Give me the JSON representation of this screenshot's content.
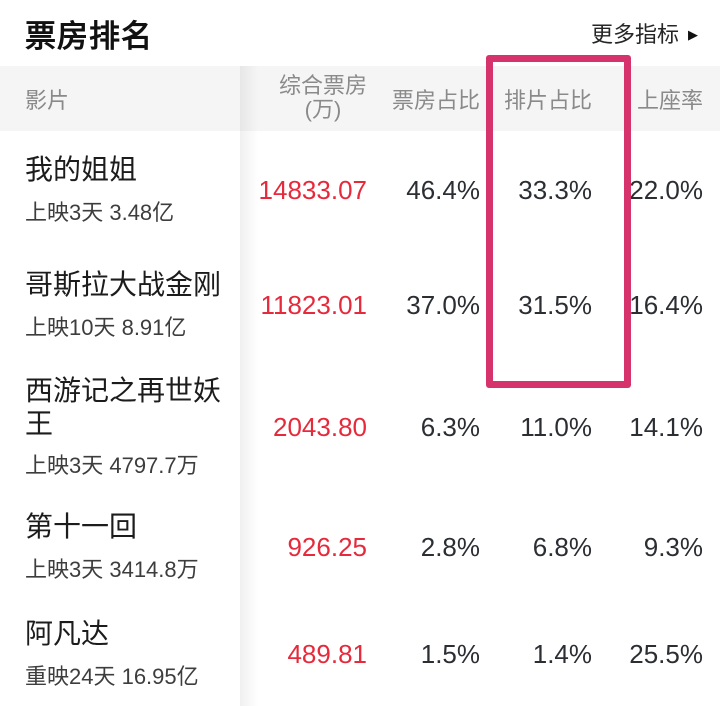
{
  "topbar": {
    "title": "票房排名",
    "more_label": "更多指标",
    "more_arrow": "▶"
  },
  "table": {
    "header": {
      "film": "影片",
      "box_office_line1": "综合票房",
      "box_office_line2": "(万)",
      "box_office_share": "票房占比",
      "screening_share": "排片占比",
      "attendance_rate": "上座率"
    },
    "rows": [
      {
        "name": "我的姐姐",
        "meta": "上映3天  3.48亿",
        "box_office": "14833.07",
        "box_office_share": "46.4%",
        "screening_share": "33.3%",
        "attendance_rate": "22.0%"
      },
      {
        "name": "哥斯拉大战金刚",
        "meta": "上映10天  8.91亿",
        "box_office": "11823.01",
        "box_office_share": "37.0%",
        "screening_share": "31.5%",
        "attendance_rate": "16.4%"
      },
      {
        "name": "西游记之再世妖王",
        "meta": "上映3天  4797.7万",
        "box_office": "2043.80",
        "box_office_share": "6.3%",
        "screening_share": "11.0%",
        "attendance_rate": "14.1%"
      },
      {
        "name": "第十一回",
        "meta": "上映3天  3414.8万",
        "box_office": "926.25",
        "box_office_share": "2.8%",
        "screening_share": "6.8%",
        "attendance_rate": "9.3%"
      },
      {
        "name": "阿凡达",
        "meta": "重映24天  16.95亿",
        "box_office": "489.81",
        "box_office_share": "1.5%",
        "screening_share": "1.4%",
        "attendance_rate": "25.5%"
      }
    ]
  },
  "annotations": {
    "highlighted_column": "排片占比"
  },
  "colors": {
    "accent_red": "#e62a3c",
    "highlight_pink": "#d6336c",
    "header_bg": "#f5f5f6"
  }
}
